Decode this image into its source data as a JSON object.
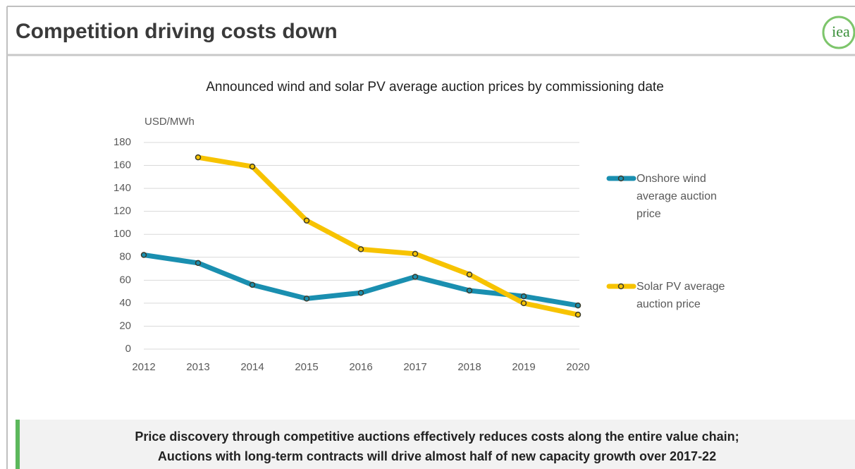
{
  "slide": {
    "title": "Competition driving costs down",
    "logo": "iea",
    "footer": [
      "Price discovery through competitive auctions effectively reduces costs along the entire value chain;",
      "Auctions with long-term contracts will drive almost half of new capacity growth over 2017-22"
    ]
  },
  "chart_data": {
    "type": "line",
    "title": "Announced wind and solar PV average auction prices by commissioning date",
    "y_label": "USD/MWh",
    "categories": [
      "2012",
      "2013",
      "2014",
      "2015",
      "2016",
      "2017",
      "2018",
      "2019",
      "2020"
    ],
    "series": [
      {
        "name": "Onshore wind average auction price",
        "color": "#1a8fb0",
        "values": [
          82,
          75,
          56,
          44,
          49,
          63,
          51,
          46,
          38
        ]
      },
      {
        "name": "Solar PV average auction price",
        "color": "#f7c300",
        "values": [
          null,
          167,
          159,
          112,
          87,
          83,
          65,
          40,
          30
        ]
      }
    ],
    "ylim": [
      0,
      180
    ],
    "yticks": [
      0,
      20,
      40,
      60,
      80,
      100,
      120,
      140,
      160,
      180
    ],
    "grid": true,
    "legend": "right"
  }
}
